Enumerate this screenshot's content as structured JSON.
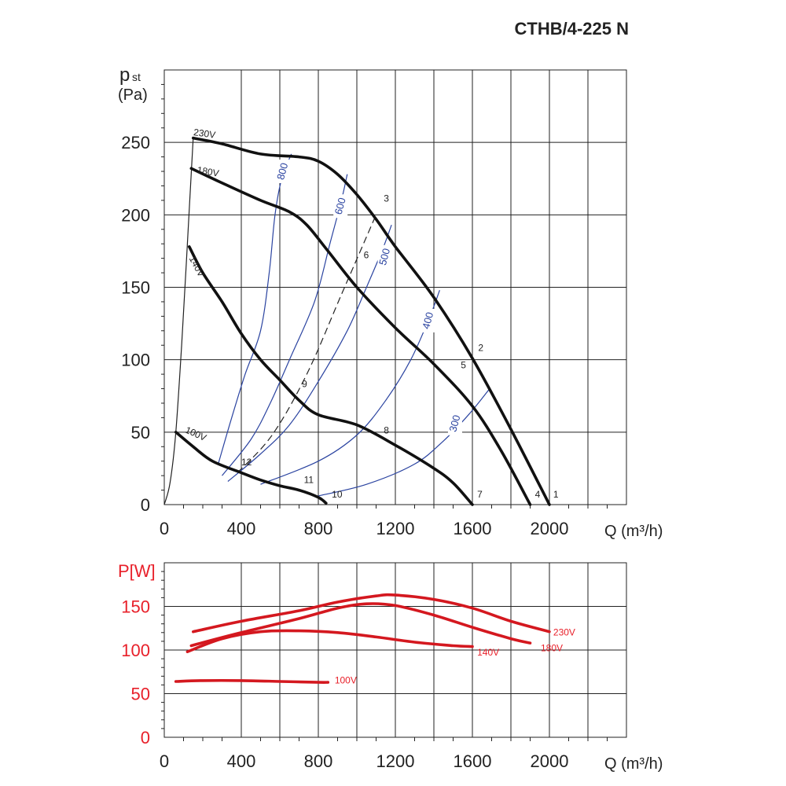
{
  "chart_data": [
    {
      "type": "line",
      "title": "CTHB/4-225 N",
      "ylabel_main": "p",
      "ylabel_sub": "st",
      "ylabel_unit": "(Pa)",
      "xlabel": "Q (m³/h)",
      "xlim": [
        0,
        2400
      ],
      "ylim": [
        0,
        300
      ],
      "xticks": [
        0,
        400,
        800,
        1200,
        1600,
        2000
      ],
      "xtick_labels": [
        "0",
        "400",
        "800",
        "1200",
        "1600",
        "2000"
      ],
      "yticks": [
        0,
        50,
        100,
        150,
        200,
        250
      ],
      "ytick_labels": [
        "0",
        "50",
        "100",
        "150",
        "200",
        "250"
      ],
      "grid": true,
      "colors": {
        "curve": "#111111",
        "rpm": "#2a43a0",
        "system": "#222222"
      },
      "series": [
        {
          "name": "230V",
          "label_at": [
            150,
            255
          ],
          "label_rotate": 8,
          "x": [
            150,
            300,
            500,
            700,
            800,
            900,
            1000,
            1100,
            1200,
            1400,
            1600,
            1800,
            2000
          ],
          "y": [
            253,
            249,
            242,
            240,
            237,
            228,
            214,
            197,
            178,
            143,
            101,
            52,
            0
          ]
        },
        {
          "name": "180V",
          "label_at": [
            168,
            229
          ],
          "label_rotate": 10,
          "x": [
            140,
            300,
            500,
            650,
            740,
            850,
            1000,
            1200,
            1400,
            1600,
            1750,
            1900
          ],
          "y": [
            232,
            222,
            210,
            202,
            193,
            175,
            150,
            122,
            97,
            68,
            37,
            0
          ]
        },
        {
          "name": "140V",
          "label_at": [
            128,
            170
          ],
          "label_rotate": 62,
          "x": [
            130,
            200,
            300,
            400,
            500,
            600,
            700,
            800,
            1000,
            1200,
            1400,
            1500,
            1600
          ],
          "y": [
            178,
            160,
            140,
            118,
            100,
            86,
            72,
            62,
            55,
            41,
            25,
            15,
            0
          ]
        },
        {
          "name": "100V",
          "label_at": [
            105,
            50
          ],
          "label_rotate": 24,
          "x": [
            60,
            150,
            250,
            400,
            500,
            600,
            700,
            800,
            840
          ],
          "y": [
            50,
            40,
            30,
            22,
            17,
            13,
            10,
            5,
            1
          ]
        }
      ],
      "rpm_curves": [
        {
          "label": "800",
          "label_at": [
            615,
            230
          ],
          "x": [
            280,
            350,
            420,
            500,
            545,
            575,
            610,
            660
          ],
          "y": [
            28,
            60,
            90,
            120,
            160,
            200,
            225,
            242
          ]
        },
        {
          "label": "600",
          "label_at": [
            915,
            206
          ],
          "x": [
            300,
            450,
            550,
            650,
            780,
            860,
            920,
            950
          ],
          "y": [
            20,
            45,
            70,
            100,
            140,
            180,
            210,
            228
          ]
        },
        {
          "label": "500",
          "label_at": [
            1145,
            171
          ],
          "x": [
            330,
            500,
            650,
            800,
            950,
            1050,
            1130,
            1180
          ],
          "y": [
            16,
            35,
            55,
            85,
            120,
            150,
            175,
            193
          ]
        },
        {
          "label": "400",
          "label_at": [
            1370,
            127
          ],
          "x": [
            500,
            800,
            1000,
            1150,
            1280,
            1380,
            1430
          ],
          "y": [
            14,
            30,
            48,
            72,
            100,
            130,
            148
          ]
        },
        {
          "label": "300",
          "label_at": [
            1510,
            56
          ],
          "x": [
            800,
            1050,
            1300,
            1450,
            1580,
            1690
          ],
          "y": [
            6,
            14,
            28,
            44,
            62,
            80
          ]
        }
      ],
      "system_curves": [
        {
          "name": "max-pressure-envelope",
          "x": [
            0,
            30,
            60,
            90,
            120,
            150
          ],
          "y": [
            0,
            15,
            50,
            110,
            180,
            253
          ],
          "dashed": false
        },
        {
          "name": "dashed-system",
          "x": [
            380,
            560,
            740,
            920,
            1100
          ],
          "y": [
            22,
            48,
            90,
            145,
            200
          ],
          "dashed": true
        }
      ],
      "operating_points": [
        {
          "label": "1",
          "x": 2020,
          "y": 5
        },
        {
          "label": "2",
          "x": 1630,
          "y": 106
        },
        {
          "label": "3",
          "x": 1140,
          "y": 209
        },
        {
          "label": "4",
          "x": 1925,
          "y": 5
        },
        {
          "label": "5",
          "x": 1540,
          "y": 94
        },
        {
          "label": "6",
          "x": 1035,
          "y": 170
        },
        {
          "label": "7",
          "x": 1625,
          "y": 5
        },
        {
          "label": "8",
          "x": 1140,
          "y": 49
        },
        {
          "label": "9",
          "x": 715,
          "y": 81
        },
        {
          "label": "10",
          "x": 870,
          "y": 5
        },
        {
          "label": "11",
          "x": 725,
          "y": 15
        },
        {
          "label": "12",
          "x": 400,
          "y": 27
        }
      ]
    },
    {
      "type": "line",
      "ylabel": "P[W]",
      "xlabel": "Q (m³/h)",
      "xlim": [
        0,
        2400
      ],
      "ylim": [
        0,
        200
      ],
      "xticks": [
        0,
        400,
        800,
        1200,
        1600,
        2000
      ],
      "xtick_labels": [
        "0",
        "400",
        "800",
        "1200",
        "1600",
        "2000"
      ],
      "yticks": [
        0,
        50,
        100,
        150
      ],
      "ytick_labels": [
        "0",
        "50",
        "100",
        "150"
      ],
      "grid": true,
      "colors": {
        "curve": "#d4181f",
        "labels": "#e8202a"
      },
      "series": [
        {
          "name": "230V",
          "label_at": [
            2020,
            121
          ],
          "x": [
            150,
            400,
            700,
            900,
            1100,
            1200,
            1400,
            1600,
            1800,
            2000
          ],
          "y": [
            121,
            133,
            145,
            155,
            162,
            163,
            158,
            148,
            133,
            121
          ]
        },
        {
          "name": "180V",
          "label_at": [
            1955,
            103
          ],
          "x": [
            140,
            400,
            700,
            900,
            1050,
            1200,
            1400,
            1600,
            1800,
            1900
          ],
          "y": [
            105,
            120,
            136,
            148,
            153,
            151,
            140,
            126,
            113,
            108
          ]
        },
        {
          "name": "140V",
          "label_at": [
            1625,
            98
          ],
          "x": [
            120,
            300,
            500,
            700,
            900,
            1100,
            1300,
            1500,
            1600
          ],
          "y": [
            98,
            113,
            121,
            122,
            120,
            115,
            109,
            105,
            104
          ]
        },
        {
          "name": "100V",
          "label_at": [
            885,
            66
          ],
          "x": [
            60,
            200,
            400,
            600,
            800,
            850
          ],
          "y": [
            64,
            65,
            65,
            64,
            63,
            63
          ]
        }
      ]
    }
  ]
}
